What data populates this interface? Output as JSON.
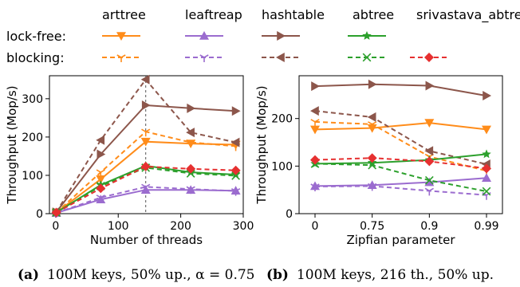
{
  "legend": {
    "columns": [
      "arttree",
      "leaftreap",
      "hashtable",
      "abtree",
      "srivastava_abtree"
    ],
    "rows": [
      "lock-free:",
      "blocking:"
    ]
  },
  "colors": {
    "arttree": "#ff8c1a",
    "leaftreap": "#9b6ccf",
    "hashtable": "#8c564b",
    "abtree": "#2ca02c",
    "srivastava_abtree": "#e63030"
  },
  "markers": {
    "arttree_lockfree": "triangle-down",
    "arttree_blocking": "tri-down",
    "leaftreap_lockfree": "triangle-up",
    "leaftreap_blocking": "tri-down",
    "hashtable_lockfree": "triangle-right",
    "hashtable_blocking": "triangle-left",
    "abtree_lockfree": "star",
    "abtree_blocking": "x",
    "srivastava_abtree_blocking": "diamond"
  },
  "captions": [
    {
      "label": "(a)",
      "text": "100M keys, 50% up., α = 0.75"
    },
    {
      "label": "(b)",
      "text": "100M keys, 216 th., 50% up."
    }
  ],
  "chart_data": [
    {
      "type": "line",
      "xlabel": "Number of threads",
      "ylabel": "Throughput (Mop/s)",
      "xlim": [
        -10,
        300
      ],
      "ylim": [
        0,
        360
      ],
      "xticks": [
        0,
        100,
        200,
        300
      ],
      "yticks": [
        0,
        100,
        200,
        300
      ],
      "vline": 144,
      "x": [
        1,
        72,
        144,
        216,
        288
      ],
      "series": [
        {
          "name": "arttree",
          "style": "lock-free",
          "values": [
            3,
            90,
            188,
            183,
            180
          ]
        },
        {
          "name": "arttree",
          "style": "blocking",
          "values": [
            3,
            108,
            214,
            186,
            176
          ]
        },
        {
          "name": "leaftreap",
          "style": "lock-free",
          "values": [
            2,
            37,
            62,
            62,
            60
          ]
        },
        {
          "name": "leaftreap",
          "style": "blocking",
          "values": [
            2,
            42,
            70,
            64,
            59
          ]
        },
        {
          "name": "hashtable",
          "style": "lock-free",
          "values": [
            4,
            155,
            283,
            275,
            268
          ]
        },
        {
          "name": "hashtable",
          "style": "blocking",
          "values": [
            4,
            192,
            350,
            212,
            186
          ]
        },
        {
          "name": "abtree",
          "style": "lock-free",
          "values": [
            3,
            75,
            125,
            108,
            102
          ]
        },
        {
          "name": "abtree",
          "style": "blocking",
          "values": [
            3,
            72,
            120,
            105,
            99
          ]
        },
        {
          "name": "srivastava_abtree",
          "style": "blocking",
          "values": [
            3,
            66,
            123,
            117,
            113
          ]
        }
      ]
    },
    {
      "type": "line",
      "xlabel": "Zipfian parameter",
      "ylabel": "Throughput (Mop/s)",
      "ylim": [
        0,
        290
      ],
      "yticks": [
        0,
        100,
        200
      ],
      "categories": [
        "0",
        "0.75",
        "0.9",
        "0.99"
      ],
      "series": [
        {
          "name": "arttree",
          "style": "lock-free",
          "values": [
            177,
            180,
            191,
            177
          ]
        },
        {
          "name": "arttree",
          "style": "blocking",
          "values": [
            193,
            188,
            120,
            90
          ]
        },
        {
          "name": "leaftreap",
          "style": "lock-free",
          "values": [
            58,
            60,
            66,
            75
          ]
        },
        {
          "name": "leaftreap",
          "style": "blocking",
          "values": [
            57,
            58,
            48,
            39
          ]
        },
        {
          "name": "hashtable",
          "style": "lock-free",
          "values": [
            268,
            272,
            269,
            248
          ]
        },
        {
          "name": "hashtable",
          "style": "blocking",
          "values": [
            216,
            203,
            132,
            104
          ]
        },
        {
          "name": "abtree",
          "style": "lock-free",
          "values": [
            105,
            107,
            113,
            125
          ]
        },
        {
          "name": "abtree",
          "style": "blocking",
          "values": [
            105,
            102,
            70,
            47
          ]
        },
        {
          "name": "srivastava_abtree",
          "style": "blocking",
          "values": [
            113,
            117,
            110,
            95
          ]
        }
      ]
    }
  ]
}
